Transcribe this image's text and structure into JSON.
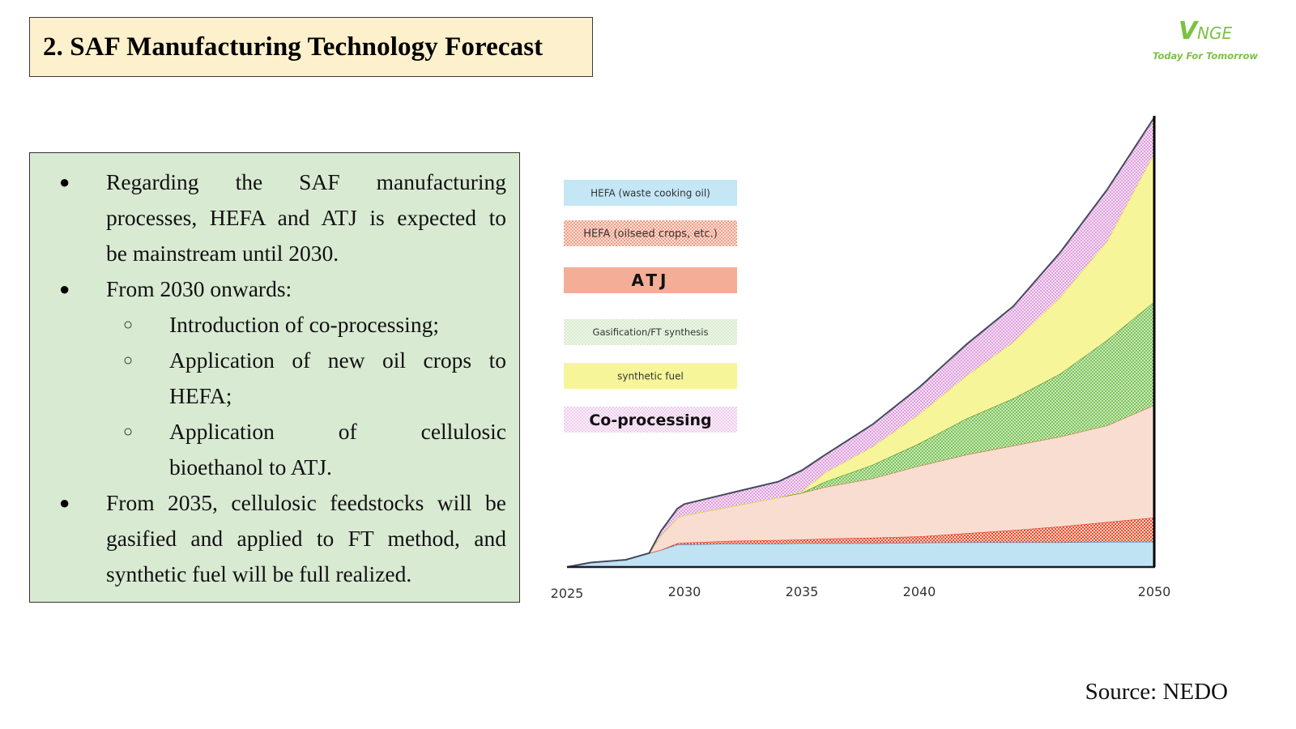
{
  "slide": {
    "title": "2. SAF Manufacturing Technology Forecast",
    "logo": {
      "mark_v": "V",
      "mark_rest": "NGE",
      "tagline": "Today For Tomorrow",
      "color": "#7cc242"
    },
    "source": "Source: NEDO"
  },
  "bullets": [
    {
      "level": 1,
      "lines": [
        "Regarding the SAF manufacturing",
        "processes, HEFA and ATJ is expected to",
        "be mainstream until 2030."
      ]
    },
    {
      "level": 1,
      "lines": [
        "From 2030 onwards:"
      ]
    },
    {
      "level": 2,
      "lines": [
        "Introduction of co-processing;"
      ]
    },
    {
      "level": 2,
      "lines": [
        "Application of new oil crops to",
        "HEFA;"
      ]
    },
    {
      "level": 2,
      "lines": [
        "Application of cellulosic",
        "bioethanol to ATJ."
      ]
    },
    {
      "level": 1,
      "lines": [
        "From 2035, cellulosic feedstocks will be",
        "gasified and applied to FT method, and",
        "synthetic fuel will be full realized."
      ]
    }
  ],
  "bullet_glyphs": {
    "level1": "●",
    "level2": "○"
  },
  "chart_data": {
    "type": "area",
    "stacked": true,
    "title": "",
    "xlabel": "",
    "ylabel": "",
    "units": "relative SAF production (2050 total = 100, estimated)",
    "x_ticks": [
      2025,
      2030,
      2035,
      2040,
      2050
    ],
    "xlim": [
      2025,
      2050
    ],
    "ylim": [
      0,
      100
    ],
    "grid": false,
    "legend_position": "top-left",
    "x": [
      2025,
      2026,
      2027.5,
      2028.5,
      2029,
      2029.7,
      2030,
      2032,
      2034,
      2035,
      2036,
      2038,
      2040,
      2042,
      2044,
      2046,
      2048,
      2050
    ],
    "series": [
      {
        "name": "HEFA (waste cooking oil)",
        "color": "#bfe3f3",
        "pattern": "solid",
        "values": [
          0,
          1.0,
          1.6,
          3.1,
          3.8,
          5.0,
          5.0,
          5.2,
          5.2,
          5.3,
          5.3,
          5.3,
          5.4,
          5.5,
          5.5,
          5.5,
          5.6,
          5.6
        ]
      },
      {
        "name": "HEFA (oilseed crops, etc.)",
        "color": "#f26b4f",
        "pattern": "checker",
        "values": [
          0,
          0,
          0,
          0,
          0,
          0.3,
          0.4,
          0.6,
          0.8,
          0.8,
          1.0,
          1.2,
          1.4,
          2.0,
          2.7,
          3.5,
          4.4,
          5.4
        ]
      },
      {
        "name": "ATJ",
        "color": "#f9ddd0",
        "pattern": "solid",
        "legend_color": "#f3aa92",
        "values": [
          0,
          0,
          0,
          0,
          3.2,
          5.7,
          6.1,
          7.7,
          9.5,
          10.4,
          11.5,
          13.2,
          15.7,
          17.5,
          18.8,
          20.0,
          21.5,
          25.0
        ]
      },
      {
        "name": "Gasification/FT synthesis",
        "color": "#8fcf6c",
        "pattern": "checker",
        "values": [
          0,
          0,
          0,
          0,
          0,
          0,
          0,
          0,
          0,
          0,
          1.2,
          3.0,
          5.0,
          8.0,
          10.5,
          14.0,
          19.0,
          23.0
        ]
      },
      {
        "name": "synthetic fuel",
        "color": "#f7f59a",
        "pattern": "solid",
        "values": [
          0,
          0,
          0,
          0,
          0,
          0,
          0,
          0,
          0,
          0.3,
          2.0,
          4.0,
          6.5,
          9.5,
          12.5,
          17.0,
          22.0,
          33.0
        ]
      },
      {
        "name": "Co-processing",
        "color": "#e6a8e6",
        "pattern": "checker",
        "values": [
          0,
          0,
          0,
          0,
          1.0,
          2.0,
          2.5,
          3.0,
          3.5,
          4.7,
          4.0,
          5.0,
          6.0,
          7.0,
          8.0,
          10.0,
          11.5,
          8.0
        ]
      }
    ]
  }
}
